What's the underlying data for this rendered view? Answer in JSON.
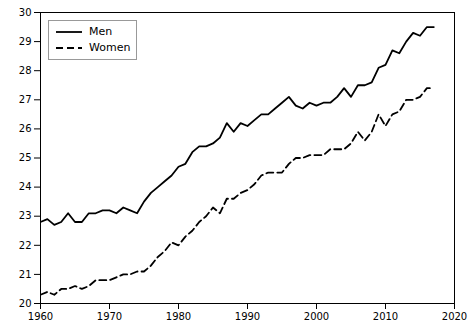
{
  "chart_data": {
    "type": "line",
    "x": [
      1960,
      1961,
      1962,
      1963,
      1964,
      1965,
      1966,
      1967,
      1968,
      1969,
      1970,
      1971,
      1972,
      1973,
      1974,
      1975,
      1976,
      1977,
      1978,
      1979,
      1980,
      1981,
      1982,
      1983,
      1984,
      1985,
      1986,
      1987,
      1988,
      1989,
      1990,
      1991,
      1992,
      1993,
      1994,
      1995,
      1996,
      1997,
      1998,
      1999,
      2000,
      2001,
      2002,
      2003,
      2004,
      2005,
      2006,
      2007,
      2008,
      2009,
      2010,
      2011,
      2012,
      2013,
      2014,
      2015,
      2016,
      2017
    ],
    "series": [
      {
        "name": "Men",
        "color": "#000000",
        "line_style": "solid",
        "values": [
          22.8,
          22.9,
          22.7,
          22.8,
          23.1,
          22.8,
          22.8,
          23.1,
          23.1,
          23.2,
          23.2,
          23.1,
          23.3,
          23.2,
          23.1,
          23.5,
          23.8,
          24.0,
          24.2,
          24.4,
          24.7,
          24.8,
          25.2,
          25.4,
          25.4,
          25.5,
          25.7,
          26.2,
          25.9,
          26.2,
          26.1,
          26.3,
          26.5,
          26.5,
          26.7,
          26.9,
          27.1,
          26.8,
          26.7,
          26.9,
          26.8,
          26.9,
          26.9,
          27.1,
          27.4,
          27.1,
          27.5,
          27.5,
          27.6,
          28.1,
          28.2,
          28.7,
          28.6,
          29.0,
          29.3,
          29.2,
          29.5,
          29.5
        ]
      },
      {
        "name": "Women",
        "color": "#000000",
        "line_style": "dashed",
        "values": [
          20.3,
          20.4,
          20.3,
          20.5,
          20.5,
          20.6,
          20.5,
          20.6,
          20.8,
          20.8,
          20.8,
          20.9,
          21.0,
          21.0,
          21.1,
          21.1,
          21.3,
          21.6,
          21.8,
          22.1,
          22.0,
          22.3,
          22.5,
          22.8,
          23.0,
          23.3,
          23.1,
          23.6,
          23.6,
          23.8,
          23.9,
          24.1,
          24.4,
          24.5,
          24.5,
          24.5,
          24.8,
          25.0,
          25.0,
          25.1,
          25.1,
          25.1,
          25.3,
          25.3,
          25.3,
          25.5,
          25.9,
          25.6,
          25.9,
          26.5,
          26.1,
          26.5,
          26.6,
          27.0,
          27.0,
          27.1,
          27.4,
          27.4
        ]
      }
    ],
    "xlim": [
      1960,
      2020
    ],
    "ylim": [
      20,
      30
    ],
    "xticks": [
      1960,
      1970,
      1980,
      1990,
      2000,
      2010,
      2020
    ],
    "yticks": [
      20,
      21,
      22,
      23,
      24,
      25,
      26,
      27,
      28,
      29,
      30
    ],
    "grid": false,
    "legend": "upper left"
  }
}
